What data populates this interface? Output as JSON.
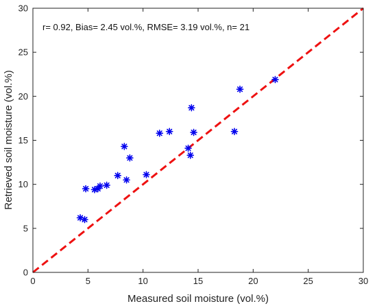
{
  "chart_data": {
    "type": "scatter",
    "title": "",
    "xlabel": "Measured soil moisture (vol.%)",
    "ylabel": "Retrieved soil moisture (vol.%)",
    "xlim": [
      0,
      30
    ],
    "ylim": [
      0,
      30
    ],
    "xticks": [
      "0",
      "5",
      "10",
      "15",
      "20",
      "25",
      "30"
    ],
    "yticks": [
      "0",
      "5",
      "10",
      "15",
      "20",
      "25",
      "30"
    ],
    "grid": false,
    "annotation": "r= 0.92, Bias= 2.45 vol.%, RMSE= 3.19 vol.%, n= 21",
    "series": [
      {
        "marker": "asterisk",
        "color": "#0000ee",
        "points": [
          {
            "x": 4.3,
            "y": 6.2
          },
          {
            "x": 4.7,
            "y": 6.0
          },
          {
            "x": 4.8,
            "y": 9.5
          },
          {
            "x": 5.6,
            "y": 9.4
          },
          {
            "x": 5.9,
            "y": 9.5
          },
          {
            "x": 6.1,
            "y": 9.8
          },
          {
            "x": 6.7,
            "y": 9.9
          },
          {
            "x": 7.7,
            "y": 11.0
          },
          {
            "x": 8.3,
            "y": 14.3
          },
          {
            "x": 8.5,
            "y": 10.5
          },
          {
            "x": 8.8,
            "y": 13.0
          },
          {
            "x": 10.3,
            "y": 11.1
          },
          {
            "x": 11.5,
            "y": 15.8
          },
          {
            "x": 12.4,
            "y": 16.0
          },
          {
            "x": 14.1,
            "y": 14.1
          },
          {
            "x": 14.3,
            "y": 13.3
          },
          {
            "x": 14.4,
            "y": 18.7
          },
          {
            "x": 14.6,
            "y": 15.9
          },
          {
            "x": 18.3,
            "y": 16.0
          },
          {
            "x": 18.8,
            "y": 20.8
          },
          {
            "x": 22.0,
            "y": 21.9
          }
        ]
      }
    ],
    "reference_line": {
      "style": "dashed",
      "color": "#ee1111",
      "from": [
        0,
        0
      ],
      "to": [
        30,
        30
      ]
    }
  }
}
